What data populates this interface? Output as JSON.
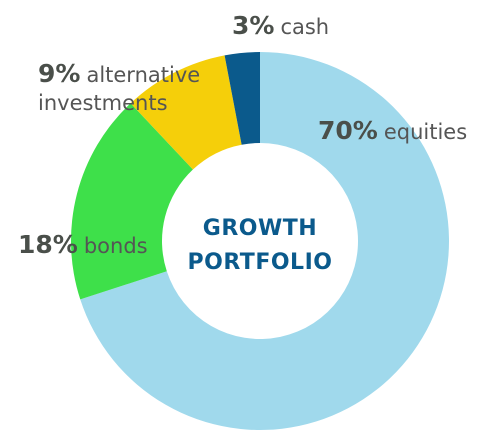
{
  "chart_data": {
    "type": "donut",
    "center_label": "GROWTH PORTFOLIO",
    "categories": [
      "equities",
      "bonds",
      "alternative investments",
      "cash"
    ],
    "values": [
      70,
      18,
      9,
      3
    ],
    "value_labels": [
      "70%",
      "18%",
      "9%",
      "3%"
    ],
    "colors": [
      "#a0d9ec",
      "#3ee04a",
      "#f5cf0a",
      "#0b5a8c"
    ]
  }
}
